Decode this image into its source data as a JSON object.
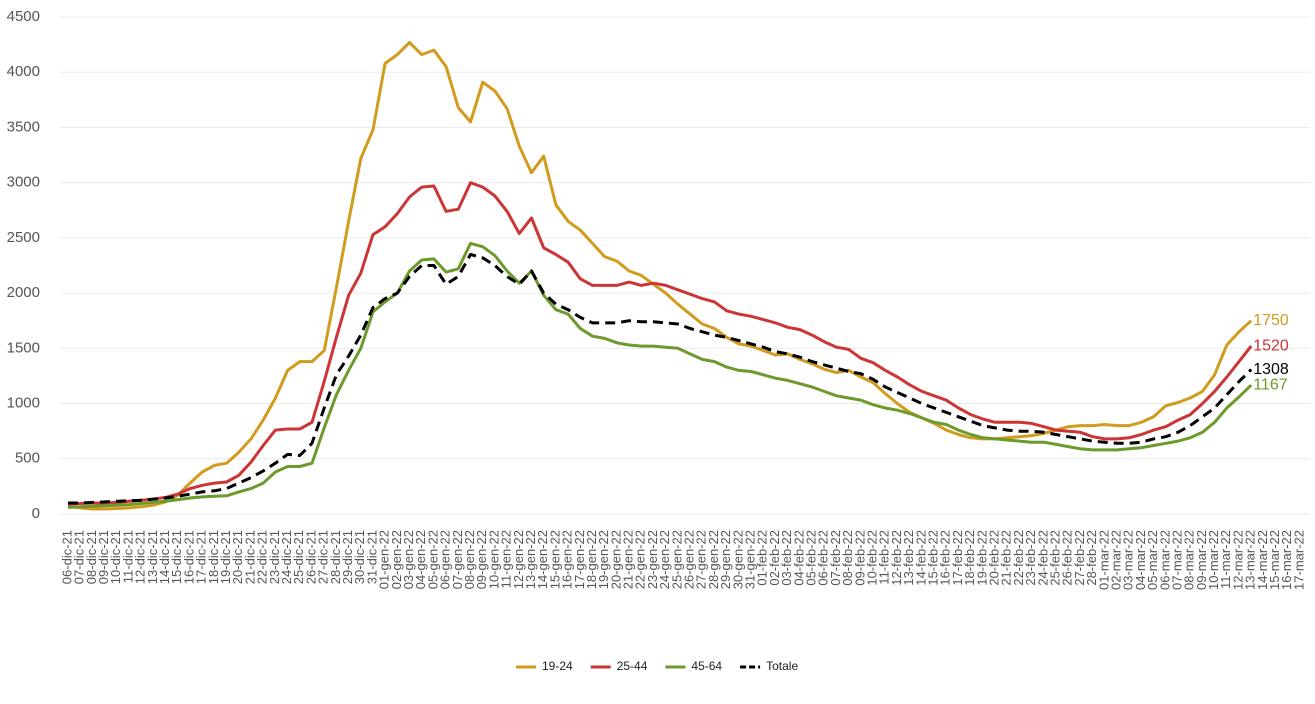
{
  "chart_data": {
    "type": "line",
    "x": [
      "06-dic-21",
      "07-dic-21",
      "08-dic-21",
      "09-dic-21",
      "10-dic-21",
      "11-dic-21",
      "12-dic-21",
      "13-dic-21",
      "14-dic-21",
      "15-dic-21",
      "16-dic-21",
      "17-dic-21",
      "18-dic-21",
      "19-dic-21",
      "20-dic-21",
      "21-dic-21",
      "22-dic-21",
      "23-dic-21",
      "24-dic-21",
      "25-dic-21",
      "26-dic-21",
      "27-dic-21",
      "28-dic-21",
      "29-dic-21",
      "30-dic-21",
      "31-dic-21",
      "01-gen-22",
      "02-gen-22",
      "03-gen-22",
      "04-gen-22",
      "05-gen-22",
      "06-gen-22",
      "07-gen-22",
      "08-gen-22",
      "09-gen-22",
      "10-gen-22",
      "11-gen-22",
      "12-gen-22",
      "13-gen-22",
      "14-gen-22",
      "15-gen-22",
      "16-gen-22",
      "17-gen-22",
      "18-gen-22",
      "19-gen-22",
      "20-gen-22",
      "21-gen-22",
      "22-gen-22",
      "23-gen-22",
      "24-gen-22",
      "25-gen-22",
      "26-gen-22",
      "27-gen-22",
      "28-gen-22",
      "29-gen-22",
      "30-gen-22",
      "31-gen-22",
      "01-feb-22",
      "02-feb-22",
      "03-feb-22",
      "04-feb-22",
      "05-feb-22",
      "06-feb-22",
      "07-feb-22",
      "08-feb-22",
      "09-feb-22",
      "10-feb-22",
      "11-feb-22",
      "12-feb-22",
      "13-feb-22",
      "14-feb-22",
      "15-feb-22",
      "16-feb-22",
      "17-feb-22",
      "18-feb-22",
      "19-feb-22",
      "20-feb-22",
      "21-feb-22",
      "22-feb-22",
      "23-feb-22",
      "24-feb-22",
      "25-feb-22",
      "26-feb-22",
      "27-feb-22",
      "28-feb-22",
      "01-mar-22",
      "02-mar-22",
      "03-mar-22",
      "04-mar-22",
      "05-mar-22",
      "06-mar-22",
      "07-mar-22",
      "08-mar-22",
      "09-mar-22",
      "10-mar-22",
      "11-mar-22",
      "12-mar-22",
      "13-mar-22",
      "14-mar-22",
      "15-mar-22",
      "16-mar-22",
      "17-mar-22"
    ],
    "series": [
      {
        "name": "19-24",
        "color": "#d19c1d",
        "style": "solid",
        "values": [
          70,
          55,
          45,
          45,
          50,
          55,
          65,
          80,
          110,
          170,
          280,
          380,
          440,
          460,
          560,
          680,
          850,
          1050,
          1300,
          1380,
          1380,
          1480,
          2050,
          2650,
          3220,
          3480,
          4080,
          4160,
          4270,
          4160,
          4200,
          4050,
          3680,
          3550,
          3910,
          3830,
          3670,
          3330,
          3090,
          3240,
          2800,
          2650,
          2570,
          2450,
          2330,
          2290,
          2200,
          2160,
          2080,
          2000,
          1900,
          1810,
          1720,
          1680,
          1600,
          1540,
          1520,
          1480,
          1440,
          1450,
          1400,
          1360,
          1310,
          1280,
          1300,
          1240,
          1190,
          1090,
          1000,
          920,
          870,
          820,
          760,
          720,
          690,
          680,
          680,
          690,
          700,
          710,
          730,
          760,
          790,
          800,
          800,
          810,
          800,
          800,
          830,
          880,
          980,
          1010,
          1050,
          1110,
          1260,
          1530,
          1650,
          1750,
          null,
          null,
          null,
          null
        ]
      },
      {
        "name": "25-44",
        "color": "#cc3535",
        "style": "solid",
        "values": [
          90,
          95,
          100,
          100,
          105,
          115,
          125,
          135,
          150,
          180,
          230,
          260,
          280,
          290,
          350,
          470,
          620,
          760,
          770,
          770,
          830,
          1200,
          1600,
          1980,
          2180,
          2530,
          2600,
          2720,
          2870,
          2960,
          2970,
          2740,
          2760,
          3000,
          2960,
          2880,
          2740,
          2540,
          2680,
          2410,
          2350,
          2280,
          2130,
          2070,
          2070,
          2070,
          2100,
          2070,
          2090,
          2070,
          2030,
          1990,
          1950,
          1920,
          1840,
          1810,
          1790,
          1760,
          1730,
          1690,
          1670,
          1620,
          1560,
          1510,
          1490,
          1410,
          1370,
          1300,
          1240,
          1170,
          1110,
          1070,
          1030,
          960,
          900,
          860,
          830,
          830,
          830,
          820,
          790,
          760,
          750,
          740,
          700,
          680,
          680,
          690,
          720,
          760,
          790,
          850,
          900,
          1000,
          1110,
          1240,
          1380,
          1520,
          null,
          null,
          null,
          null
        ]
      },
      {
        "name": "45-64",
        "color": "#6c9a2c",
        "style": "solid",
        "values": [
          60,
          65,
          70,
          75,
          80,
          85,
          95,
          105,
          115,
          130,
          145,
          155,
          160,
          165,
          200,
          230,
          280,
          380,
          430,
          430,
          460,
          780,
          1080,
          1300,
          1500,
          1830,
          1920,
          2000,
          2200,
          2300,
          2310,
          2190,
          2220,
          2450,
          2420,
          2340,
          2200,
          2090,
          2200,
          1980,
          1850,
          1810,
          1680,
          1610,
          1590,
          1550,
          1530,
          1520,
          1520,
          1510,
          1500,
          1450,
          1400,
          1380,
          1330,
          1300,
          1290,
          1260,
          1230,
          1210,
          1180,
          1150,
          1110,
          1070,
          1050,
          1030,
          990,
          960,
          940,
          910,
          870,
          830,
          810,
          760,
          720,
          690,
          680,
          670,
          660,
          650,
          650,
          630,
          610,
          590,
          580,
          580,
          580,
          590,
          600,
          620,
          640,
          660,
          690,
          740,
          830,
          960,
          1060,
          1167,
          null,
          null,
          null,
          null
        ]
      },
      {
        "name": "Totale",
        "color": "#000000",
        "style": "dashed",
        "values": [
          100,
          100,
          105,
          110,
          115,
          120,
          125,
          135,
          145,
          160,
          180,
          200,
          210,
          230,
          280,
          330,
          390,
          460,
          540,
          530,
          640,
          960,
          1260,
          1430,
          1620,
          1870,
          1950,
          2000,
          2150,
          2250,
          2250,
          2080,
          2150,
          2350,
          2320,
          2250,
          2150,
          2080,
          2200,
          2000,
          1900,
          1850,
          1780,
          1730,
          1730,
          1730,
          1750,
          1740,
          1740,
          1730,
          1720,
          1680,
          1650,
          1620,
          1600,
          1570,
          1540,
          1510,
          1470,
          1450,
          1420,
          1380,
          1350,
          1320,
          1290,
          1270,
          1220,
          1150,
          1100,
          1050,
          1000,
          960,
          920,
          880,
          840,
          800,
          780,
          760,
          750,
          750,
          740,
          720,
          700,
          680,
          660,
          650,
          640,
          640,
          650,
          680,
          700,
          740,
          800,
          880,
          960,
          1080,
          1200,
          1308,
          null,
          null,
          null,
          null
        ]
      }
    ],
    "ylim": [
      0,
      4500
    ],
    "yticks": [
      0,
      500,
      1000,
      1500,
      2000,
      2500,
      3000,
      3500,
      4000,
      4500
    ],
    "grid": true,
    "legend": "bottom"
  }
}
